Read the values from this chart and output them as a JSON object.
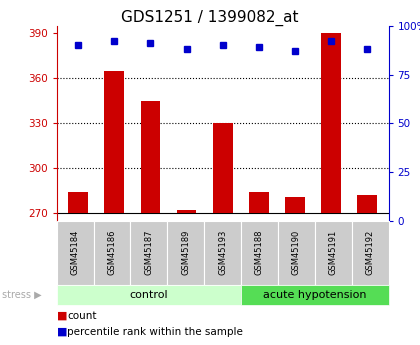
{
  "title": "GDS1251 / 1399082_at",
  "samples": [
    "GSM45184",
    "GSM45186",
    "GSM45187",
    "GSM45189",
    "GSM45193",
    "GSM45188",
    "GSM45190",
    "GSM45191",
    "GSM45192"
  ],
  "counts": [
    284,
    365,
    345,
    272,
    330,
    284,
    281,
    390,
    282
  ],
  "percentile_ranks": [
    90,
    92,
    91,
    88,
    90,
    89,
    87,
    92,
    88
  ],
  "n_control": 5,
  "n_acute": 4,
  "ylim_left": [
    265,
    395
  ],
  "ylim_right": [
    0,
    100
  ],
  "yticks_left": [
    270,
    300,
    330,
    360,
    390
  ],
  "yticks_right": [
    0,
    25,
    50,
    75,
    100
  ],
  "grid_yticks": [
    300,
    330,
    360
  ],
  "bar_color": "#cc0000",
  "dot_color": "#0000cc",
  "bar_width": 0.55,
  "control_bg_light": "#ccffcc",
  "control_bg_dark": "#55dd55",
  "acute_bg": "#44cc44",
  "sample_box_color": "#cccccc",
  "stress_arrow_color": "#aaaaaa",
  "title_fontsize": 11,
  "tick_fontsize": 7.5,
  "label_fontsize": 8,
  "sample_fontsize": 6,
  "legend_fontsize": 7.5
}
